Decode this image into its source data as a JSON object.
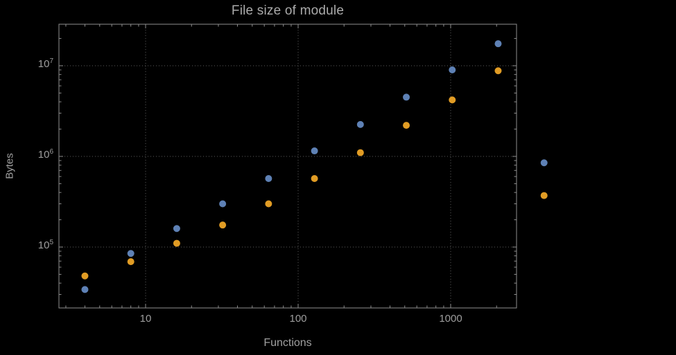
{
  "chart_data": {
    "type": "scatter",
    "title": "File size of module",
    "xlabel": "Functions",
    "ylabel": "Bytes",
    "x_scale": "log",
    "y_scale": "log",
    "grid": "dotted",
    "legend": "none",
    "x_ticks": [
      10,
      100,
      1000
    ],
    "y_ticks": [
      100000,
      1000000,
      10000000
    ],
    "x_range": [
      3,
      2700
    ],
    "y_range": [
      21000,
      29000000
    ],
    "x": [
      4,
      8,
      16,
      32,
      64,
      128,
      256,
      512,
      1024,
      2048,
      4096
    ],
    "series": [
      {
        "name": "series-blue",
        "color": "#5E81B5",
        "values": [
          34000,
          85000,
          160000,
          300000,
          570000,
          1150000,
          2250000,
          4500000,
          9000000,
          17500000,
          850000
        ]
      },
      {
        "name": "series-orange",
        "color": "#E19C24",
        "values": [
          48000,
          69000,
          110000,
          175000,
          300000,
          570000,
          1100000,
          2200000,
          4200000,
          8800000,
          370000
        ]
      }
    ],
    "colors": {
      "background": "#000000",
      "frame": "#8f8f8f",
      "grid": "#5c5c5c",
      "tick_text": "#9e9e9e",
      "title_text": "#ababab"
    }
  }
}
